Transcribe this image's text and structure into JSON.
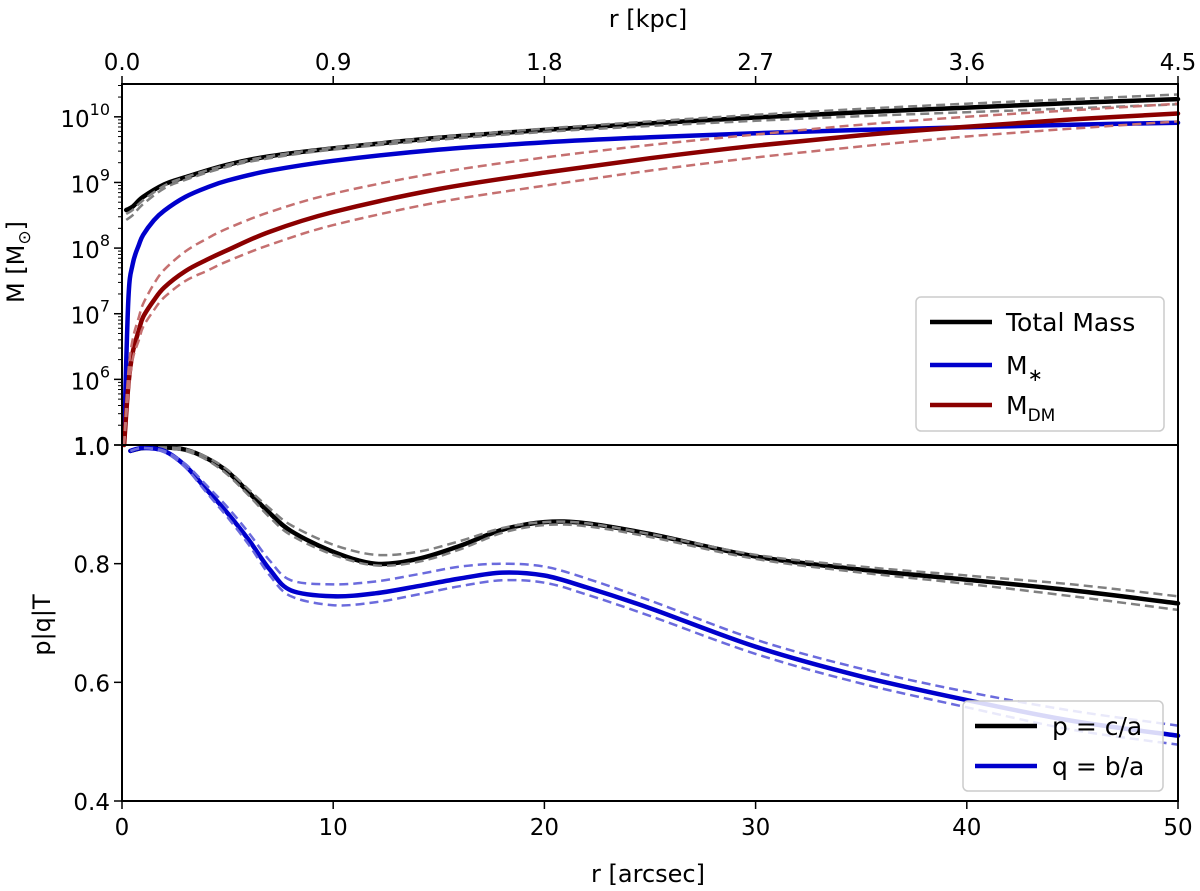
{
  "figure": {
    "top_axis_label": "r [kpc]",
    "bottom_axis_label": "r [arcsec]",
    "top_panel_ylabel_main": "M [M",
    "top_panel_ylabel_sub": "⊙",
    "top_panel_ylabel_end": "]",
    "bottom_panel_ylabel": "p|q|T",
    "legend_top": [
      {
        "main": "Total Mass",
        "sub": ""
      },
      {
        "main": "M",
        "sub": "∗"
      },
      {
        "main": "M",
        "sub": "DM"
      }
    ],
    "legend_bottom": [
      {
        "main": "p = c/a",
        "sub": ""
      },
      {
        "main": "q = b/a",
        "sub": ""
      }
    ]
  },
  "colors": {
    "total": "#000000",
    "stellar": "#0000cc",
    "dm": "#8b0000",
    "total_band": "#808080",
    "stellar_band": "#6b6bdd",
    "dm_band": "#c57070"
  },
  "chart_data": [
    {
      "type": "line",
      "panel": "top",
      "title": "",
      "xlabel": "r [arcsec]",
      "ylabel": "M [M⊙]",
      "yscale": "log",
      "xlim": [
        0,
        50
      ],
      "ylim_log10": [
        5.0,
        10.5
      ],
      "x_ticks": [
        "0",
        "10",
        "20",
        "30",
        "40",
        "50"
      ],
      "y_tick_labels": [
        {
          "main": "1.0",
          "exp": ""
        },
        {
          "main": "10",
          "exp": "6"
        },
        {
          "main": "10",
          "exp": "7"
        },
        {
          "main": "10",
          "exp": "8"
        },
        {
          "main": "10",
          "exp": "9"
        },
        {
          "main": "10",
          "exp": "10"
        }
      ],
      "y_tick_values_log10": [
        5,
        6,
        7,
        8,
        9,
        10
      ],
      "secondary_x": {
        "label": "r [kpc]",
        "ticks": [
          "0.0",
          "0.9",
          "1.8",
          "2.7",
          "3.6",
          "4.5"
        ],
        "ticks_in_arcsec": [
          0,
          10,
          20,
          30,
          40,
          50
        ]
      },
      "legend_position": "lower-right",
      "series": [
        {
          "name": "Total Mass",
          "color_key": "total",
          "style": "solid",
          "x": [
            0.2,
            0.5,
            1,
            2,
            3,
            5,
            7,
            10,
            15,
            20,
            25,
            30,
            35,
            40,
            45,
            50
          ],
          "log10_y": [
            8.58,
            8.63,
            8.78,
            8.97,
            9.08,
            9.27,
            9.4,
            9.52,
            9.68,
            9.8,
            9.9,
            9.99,
            10.07,
            10.14,
            10.21,
            10.27
          ]
        },
        {
          "name": "Total Mass upper",
          "color_key": "total_band",
          "style": "dashed",
          "x": [
            0.2,
            0.5,
            1,
            2,
            3,
            5,
            7,
            10,
            15,
            20,
            25,
            30,
            35,
            40,
            45,
            50
          ],
          "log10_y": [
            8.52,
            8.58,
            8.73,
            8.95,
            9.08,
            9.27,
            9.4,
            9.53,
            9.69,
            9.82,
            9.93,
            10.03,
            10.12,
            10.2,
            10.27,
            10.34
          ]
        },
        {
          "name": "Total Mass lower",
          "color_key": "total_band",
          "style": "dashed",
          "x": [
            0.2,
            0.5,
            1,
            2,
            3,
            5,
            7,
            10,
            15,
            20,
            25,
            30,
            35,
            40,
            45,
            50
          ],
          "log10_y": [
            8.43,
            8.5,
            8.67,
            8.91,
            9.04,
            9.24,
            9.37,
            9.5,
            9.65,
            9.77,
            9.86,
            9.94,
            10.01,
            10.07,
            10.13,
            10.19
          ]
        },
        {
          "name": "M∗",
          "color_key": "stellar",
          "style": "solid",
          "x": [
            0.1,
            0.3,
            0.5,
            0.8,
            1,
            1.5,
            2,
            3,
            4,
            5,
            7,
            10,
            15,
            20,
            25,
            30,
            35,
            40,
            45,
            50
          ],
          "log10_y": [
            5.1,
            7.2,
            7.75,
            8.05,
            8.2,
            8.42,
            8.57,
            8.78,
            8.92,
            9.03,
            9.18,
            9.33,
            9.5,
            9.61,
            9.69,
            9.75,
            9.8,
            9.84,
            9.88,
            9.91
          ]
        },
        {
          "name": "M_DM",
          "color_key": "dm",
          "style": "solid",
          "x": [
            0.1,
            0.3,
            0.5,
            0.8,
            1,
            1.5,
            2,
            3,
            4,
            5,
            7,
            10,
            15,
            20,
            25,
            30,
            35,
            40,
            45,
            50
          ],
          "log10_y": [
            5.0,
            5.9,
            6.4,
            6.75,
            6.95,
            7.2,
            7.4,
            7.65,
            7.82,
            7.97,
            8.25,
            8.55,
            8.9,
            9.15,
            9.37,
            9.56,
            9.72,
            9.85,
            9.96,
            10.05
          ]
        },
        {
          "name": "M_DM upper",
          "color_key": "dm_band",
          "style": "dashed",
          "x": [
            0.1,
            0.3,
            0.5,
            0.8,
            1,
            1.5,
            2,
            3,
            4,
            5,
            7,
            10,
            15,
            20,
            25,
            30,
            35,
            40,
            45,
            50
          ],
          "log10_y": [
            5.0,
            6.1,
            6.6,
            6.95,
            7.15,
            7.45,
            7.67,
            7.95,
            8.14,
            8.3,
            8.55,
            8.83,
            9.15,
            9.38,
            9.57,
            9.73,
            9.88,
            10.0,
            10.1,
            10.2
          ]
        },
        {
          "name": "M_DM lower",
          "color_key": "dm_band",
          "style": "dashed",
          "x": [
            0.1,
            0.3,
            0.5,
            0.8,
            1,
            1.5,
            2,
            3,
            4,
            5,
            7,
            10,
            15,
            20,
            25,
            30,
            35,
            40,
            45,
            50
          ],
          "log10_y": [
            5.0,
            5.8,
            6.3,
            6.6,
            6.8,
            7.05,
            7.25,
            7.5,
            7.65,
            7.8,
            8.05,
            8.35,
            8.7,
            8.95,
            9.18,
            9.38,
            9.55,
            9.7,
            9.82,
            9.93
          ]
        }
      ]
    },
    {
      "type": "line",
      "panel": "bottom",
      "title": "",
      "xlabel": "r [arcsec]",
      "ylabel": "p|q|T",
      "xlim": [
        0,
        50
      ],
      "ylim": [
        0.4,
        1.0
      ],
      "x_ticks": [
        "0",
        "10",
        "20",
        "30",
        "40",
        "50"
      ],
      "y_ticks": [
        "0.4",
        "0.6",
        "0.8",
        "1.0"
      ],
      "y_tick_values": [
        0.4,
        0.6,
        0.8,
        1.0
      ],
      "legend_position": "lower-right",
      "series": [
        {
          "name": "p = c/a",
          "color_key": "total",
          "style": "solid",
          "x": [
            0.4,
            1,
            2,
            3,
            4,
            5,
            6,
            7,
            8,
            10,
            12,
            14,
            16,
            18,
            20,
            22,
            25,
            30,
            35,
            40,
            45,
            50
          ],
          "y": [
            0.99,
            0.995,
            0.996,
            0.992,
            0.978,
            0.955,
            0.92,
            0.885,
            0.855,
            0.82,
            0.8,
            0.808,
            0.83,
            0.857,
            0.87,
            0.868,
            0.85,
            0.812,
            0.79,
            0.773,
            0.755,
            0.733
          ]
        },
        {
          "name": "p upper",
          "color_key": "total_band",
          "style": "dashed",
          "x": [
            0.4,
            1,
            2,
            3,
            4,
            5,
            6,
            7,
            8,
            10,
            12,
            14,
            16,
            18,
            20,
            22,
            25,
            30,
            35,
            40,
            45,
            50
          ],
          "y": [
            0.99,
            0.995,
            0.996,
            0.993,
            0.98,
            0.958,
            0.925,
            0.893,
            0.865,
            0.832,
            0.815,
            0.82,
            0.838,
            0.86,
            0.87,
            0.868,
            0.85,
            0.815,
            0.795,
            0.78,
            0.765,
            0.745
          ]
        },
        {
          "name": "p lower",
          "color_key": "total_band",
          "style": "dashed",
          "x": [
            0.4,
            1,
            2,
            3,
            4,
            5,
            6,
            7,
            8,
            10,
            12,
            14,
            16,
            18,
            20,
            22,
            25,
            30,
            35,
            40,
            45,
            50
          ],
          "y": [
            0.99,
            0.995,
            0.995,
            0.99,
            0.975,
            0.95,
            0.915,
            0.878,
            0.848,
            0.815,
            0.797,
            0.803,
            0.824,
            0.852,
            0.865,
            0.863,
            0.845,
            0.808,
            0.785,
            0.766,
            0.745,
            0.722
          ]
        },
        {
          "name": "q = b/a",
          "color_key": "stellar",
          "style": "solid",
          "x": [
            0.4,
            1,
            2,
            3,
            4,
            5,
            6,
            7,
            8,
            10,
            12,
            14,
            16,
            18,
            20,
            22,
            25,
            30,
            35,
            40,
            45,
            50
          ],
          "y": [
            0.99,
            0.995,
            0.99,
            0.965,
            0.925,
            0.885,
            0.84,
            0.79,
            0.755,
            0.745,
            0.75,
            0.762,
            0.775,
            0.785,
            0.78,
            0.76,
            0.725,
            0.66,
            0.61,
            0.57,
            0.535,
            0.51
          ]
        },
        {
          "name": "q upper",
          "color_key": "stellar_band",
          "style": "dashed",
          "x": [
            0.4,
            1,
            2,
            3,
            4,
            5,
            6,
            7,
            8,
            10,
            12,
            14,
            16,
            18,
            20,
            22,
            25,
            30,
            35,
            40,
            45,
            50
          ],
          "y": [
            0.99,
            0.995,
            0.99,
            0.968,
            0.932,
            0.895,
            0.852,
            0.805,
            0.772,
            0.765,
            0.77,
            0.782,
            0.795,
            0.8,
            0.795,
            0.775,
            0.738,
            0.672,
            0.623,
            0.584,
            0.552,
            0.527
          ]
        },
        {
          "name": "q lower",
          "color_key": "stellar_band",
          "style": "dashed",
          "x": [
            0.4,
            1,
            2,
            3,
            4,
            5,
            6,
            7,
            8,
            10,
            12,
            14,
            16,
            18,
            20,
            22,
            25,
            30,
            35,
            40,
            45,
            50
          ],
          "y": [
            0.99,
            0.995,
            0.988,
            0.962,
            0.92,
            0.878,
            0.832,
            0.78,
            0.745,
            0.73,
            0.735,
            0.748,
            0.762,
            0.772,
            0.768,
            0.748,
            0.712,
            0.648,
            0.598,
            0.558,
            0.52,
            0.495
          ]
        }
      ]
    }
  ]
}
